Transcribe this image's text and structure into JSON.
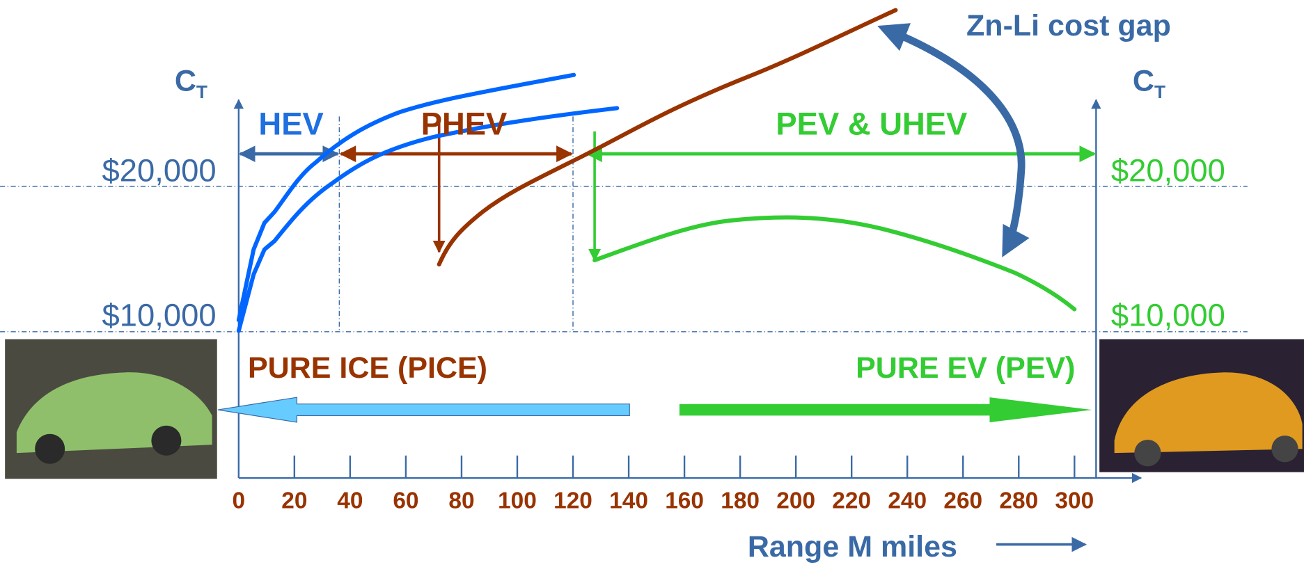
{
  "left_axis": {
    "label": "C",
    "label_sub": "T",
    "ticks": [
      "$20,000",
      "$10,000"
    ]
  },
  "right_axis": {
    "label": "C",
    "label_sub": "T",
    "ticks": [
      "$20,000",
      "$10,000"
    ]
  },
  "x_axis": {
    "ticks": [
      "0",
      "20",
      "40",
      "60",
      "80",
      "100",
      "120",
      "140",
      "160",
      "180",
      "200",
      "220",
      "240",
      "260",
      "280",
      "300"
    ],
    "label": "Range M  miles"
  },
  "regions": [
    {
      "label": "HEV"
    },
    {
      "label": "PHEV"
    },
    {
      "label": "PEV & UHEV"
    }
  ],
  "annotations": {
    "cost_gap": "Zn-Li cost gap",
    "pure_ice": "PURE ICE (PICE)",
    "pure_ev": "PURE EV (PEV)"
  }
}
